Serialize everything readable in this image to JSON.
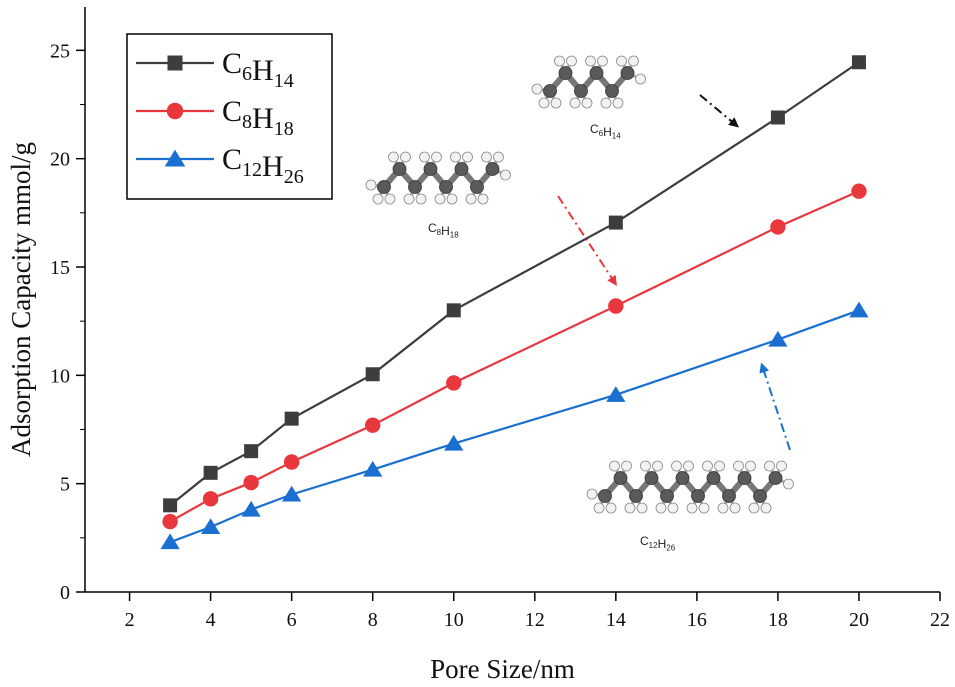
{
  "chart_data": {
    "type": "line",
    "title": "",
    "xlabel": "Pore Size/nm",
    "ylabel": "Adsorption Capacity mmol/g",
    "xlim": [
      0.9,
      22
    ],
    "ylim": [
      0,
      27
    ],
    "xticks": [
      2,
      4,
      6,
      8,
      10,
      12,
      14,
      16,
      18,
      20,
      22
    ],
    "yticks": [
      0,
      5,
      10,
      15,
      20,
      25
    ],
    "x": [
      3,
      4,
      5,
      6,
      8,
      10,
      14,
      18,
      20
    ],
    "series": [
      {
        "name": "C6H14",
        "label_parts": [
          {
            "t": "C",
            "sub": "6"
          },
          {
            "t": "H",
            "sub": "14"
          }
        ],
        "color": "#3d3d3d",
        "marker": "square",
        "values": [
          4.0,
          5.5,
          6.5,
          8.0,
          10.05,
          13.0,
          17.05,
          21.9,
          24.45
        ]
      },
      {
        "name": "C8H18",
        "label_parts": [
          {
            "t": "C",
            "sub": "8"
          },
          {
            "t": "H",
            "sub": "18"
          }
        ],
        "color": "#e8383d",
        "marker": "circle",
        "values": [
          3.25,
          4.3,
          5.05,
          6.0,
          7.7,
          9.65,
          13.2,
          16.85,
          18.5
        ]
      },
      {
        "name": "C12H26",
        "label_parts": [
          {
            "t": "C",
            "sub": "12"
          },
          {
            "t": "H",
            "sub": "26"
          }
        ],
        "color": "#1a6fd1",
        "marker": "triangle",
        "values": [
          2.3,
          3.0,
          3.8,
          4.5,
          5.65,
          6.85,
          9.1,
          11.65,
          13.0
        ]
      }
    ],
    "legend": "top-left",
    "annotations": [
      {
        "name": "C6H14",
        "label_parts": [
          {
            "t": "C",
            "sub": "6"
          },
          {
            "t": "H",
            "sub": "14"
          }
        ],
        "carbons": 6,
        "arrow_color": "#111111",
        "points_to": [
          17,
          21.5
        ]
      },
      {
        "name": "C8H18",
        "label_parts": [
          {
            "t": "C",
            "sub": "8"
          },
          {
            "t": "H",
            "sub": "18"
          }
        ],
        "carbons": 8,
        "arrow_color": "#e8383d",
        "points_to": [
          14,
          14.2
        ]
      },
      {
        "name": "C12H26",
        "label_parts": [
          {
            "t": "C",
            "sub": "12"
          },
          {
            "t": "H",
            "sub": "26"
          }
        ],
        "carbons": 12,
        "arrow_color": "#1a6fd1",
        "points_to": [
          17.6,
          10.5
        ]
      }
    ]
  }
}
